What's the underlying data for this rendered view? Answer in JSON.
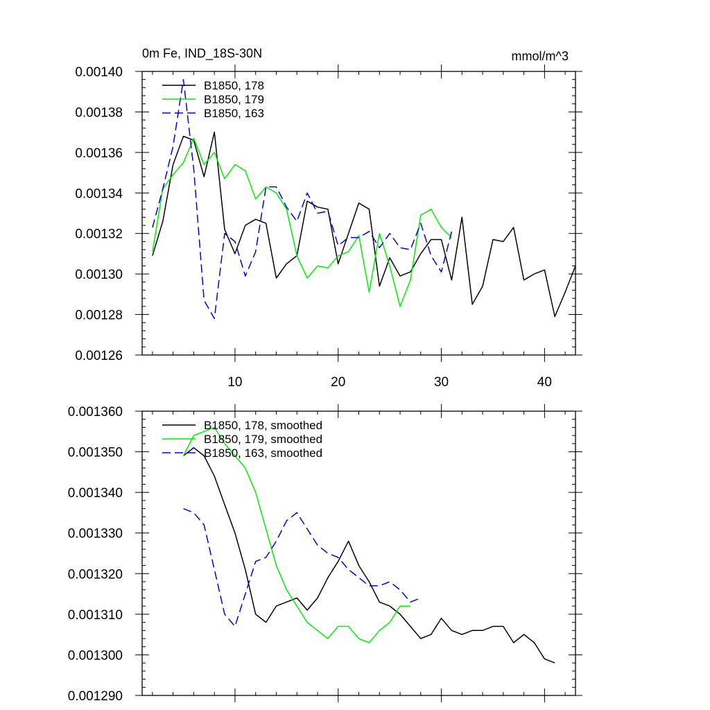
{
  "chart_data": [
    {
      "type": "line",
      "title_left": "0m Fe, IND_18S-30N",
      "title_right": "mmol/m^3",
      "xlim": [
        1,
        43
      ],
      "ylim": [
        0.00126,
        0.0014
      ],
      "xticks": [
        10,
        20,
        30,
        40
      ],
      "xtick_labels": [
        "10",
        "20",
        "30",
        "40"
      ],
      "yticks": [
        0.00126,
        0.00128,
        0.0013,
        0.00132,
        0.00134,
        0.00136,
        0.00138,
        0.0014
      ],
      "ytick_labels": [
        "0.00126",
        "0.00128",
        "0.00130",
        "0.00132",
        "0.00134",
        "0.00136",
        "0.00138",
        "0.00140"
      ],
      "legend_position": "top-left",
      "series": [
        {
          "name": "B1850, 178",
          "color": "#000000",
          "dash": "solid",
          "x_start": 2,
          "values": [
            0.001309,
            0.001326,
            0.001354,
            0.001368,
            0.001366,
            0.001348,
            0.00137,
            0.001322,
            0.00131,
            0.001324,
            0.001327,
            0.001325,
            0.001298,
            0.001305,
            0.001309,
            0.001336,
            0.001333,
            0.001332,
            0.001305,
            0.00132,
            0.001335,
            0.001332,
            0.001294,
            0.001308,
            0.001299,
            0.001301,
            0.00131,
            0.001317,
            0.001317,
            0.001297,
            0.001328,
            0.001285,
            0.001294,
            0.001317,
            0.001316,
            0.001323,
            0.001297,
            0.0013,
            0.001302,
            0.001279,
            0.001291,
            0.001304
          ]
        },
        {
          "name": "B1850, 179",
          "color": "#00ee00",
          "dash": "solid",
          "x_start": 2,
          "values": [
            0.001311,
            0.001342,
            0.001349,
            0.001355,
            0.001367,
            0.001354,
            0.00136,
            0.001347,
            0.001354,
            0.001351,
            0.001337,
            0.001343,
            0.00134,
            0.001332,
            0.001309,
            0.001298,
            0.001304,
            0.001303,
            0.001309,
            0.001311,
            0.001319,
            0.001291,
            0.00132,
            0.001304,
            0.001284,
            0.001297,
            0.001329,
            0.001332,
            0.001323,
            0.001318
          ]
        },
        {
          "name": "B1850, 163",
          "color": "#0000dd",
          "dash": "dashed",
          "x_start": 2,
          "values": [
            0.001323,
            0.001342,
            0.001363,
            0.001396,
            0.001352,
            0.001287,
            0.001278,
            0.00132,
            0.001316,
            0.001299,
            0.001311,
            0.001343,
            0.001343,
            0.001333,
            0.001326,
            0.00134,
            0.00133,
            0.001331,
            0.001314,
            0.001318,
            0.001318,
            0.001321,
            0.001313,
            0.00132,
            0.001313,
            0.001312,
            0.001325,
            0.001309,
            0.001301,
            0.001321
          ]
        }
      ]
    },
    {
      "type": "line",
      "xlim": [
        1,
        43
      ],
      "ylim": [
        0.00129,
        0.00136
      ],
      "xticks": [
        10,
        20,
        30,
        40
      ],
      "yticks": [
        0.00129,
        0.0013,
        0.00131,
        0.00132,
        0.00133,
        0.00134,
        0.00135,
        0.00136
      ],
      "ytick_labels": [
        "0.001290",
        "0.001300",
        "0.001310",
        "0.001320",
        "0.001330",
        "0.001340",
        "0.001350",
        "0.001360"
      ],
      "legend_position": "top-left",
      "series": [
        {
          "name": "B1850, 178, smoothed",
          "color": "#000000",
          "dash": "solid",
          "x_start": 5,
          "values": [
            0.001349,
            0.001351,
            0.001349,
            0.001344,
            0.001337,
            0.00133,
            0.001321,
            0.00131,
            0.001308,
            0.001312,
            0.001313,
            0.001314,
            0.001311,
            0.001314,
            0.001319,
            0.001323,
            0.001328,
            0.001322,
            0.001318,
            0.001313,
            0.001312,
            0.00131,
            0.001307,
            0.001304,
            0.001305,
            0.001309,
            0.001306,
            0.001305,
            0.001306,
            0.001306,
            0.001307,
            0.001307,
            0.001303,
            0.001305,
            0.001303,
            0.001299,
            0.001298
          ]
        },
        {
          "name": "B1850, 179, smoothed",
          "color": "#00ee00",
          "dash": "solid",
          "x_start": 5,
          "values": [
            0.001349,
            0.001354,
            0.001355,
            0.001356,
            0.001352,
            0.001349,
            0.001346,
            0.00134,
            0.001331,
            0.001322,
            0.001316,
            0.001312,
            0.001308,
            0.001306,
            0.001304,
            0.001307,
            0.001307,
            0.001304,
            0.001303,
            0.001306,
            0.001308,
            0.001312,
            0.001312
          ]
        },
        {
          "name": "B1850, 163, smoothed",
          "color": "#0000dd",
          "dash": "dashed",
          "x_start": 5,
          "values": [
            0.001336,
            0.001335,
            0.001332,
            0.001321,
            0.00131,
            0.001307,
            0.001315,
            0.001323,
            0.001324,
            0.001328,
            0.001333,
            0.001335,
            0.001331,
            0.001327,
            0.001325,
            0.001324,
            0.001321,
            0.001319,
            0.001317,
            0.001317,
            0.001318,
            0.001316,
            0.001313,
            0.001314
          ]
        }
      ]
    }
  ]
}
